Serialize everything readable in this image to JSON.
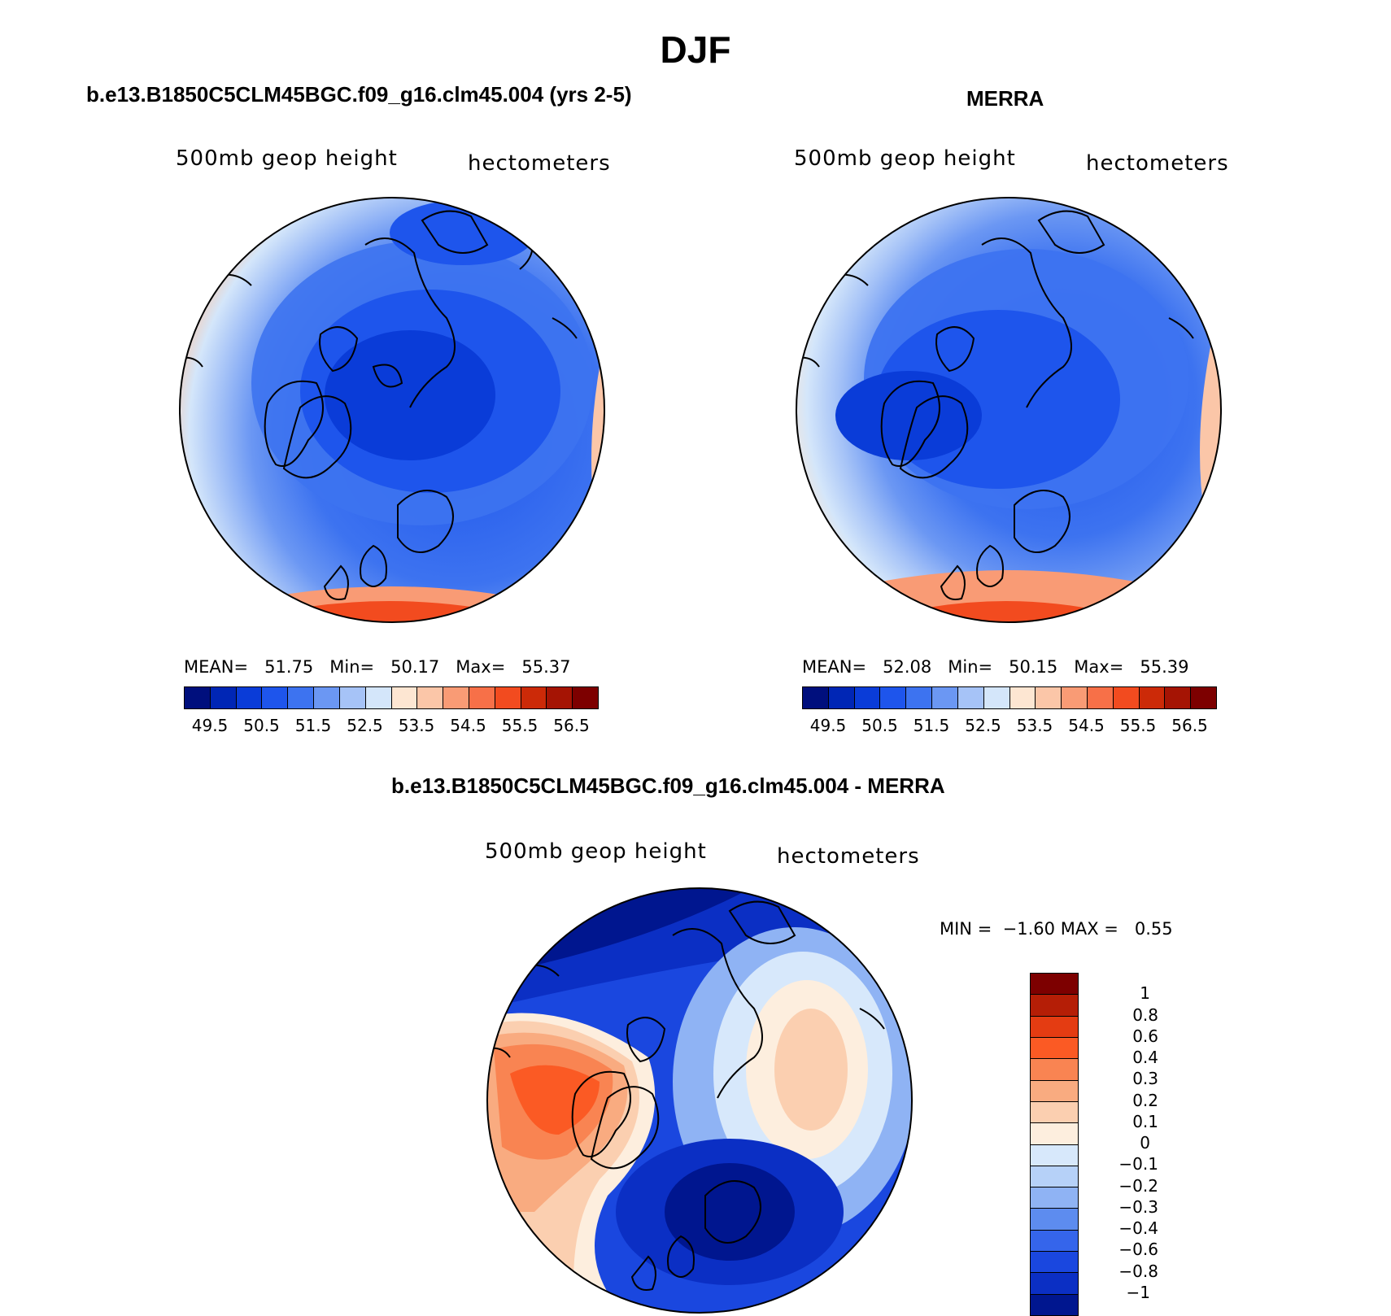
{
  "figure_title": "DJF",
  "panels": [
    {
      "title": "b.e13.B1850C5CLM45BGC.f09_g16.clm45.004 (yrs 2-5)",
      "left_label": "500mb geop height",
      "right_label": "hectometers",
      "mean_label": "MEAN=",
      "mean": "51.75",
      "min_label": "Min=",
      "min": "50.17",
      "max_label": "Max=",
      "max": "55.37"
    },
    {
      "title": "MERRA",
      "left_label": "500mb geop height",
      "right_label": "hectometers",
      "mean_label": "MEAN=",
      "mean": "52.08",
      "min_label": "Min=",
      "min": "50.15",
      "max_label": "Max=",
      "max": "55.39"
    },
    {
      "title": "b.e13.B1850C5CLM45BGC.f09_g16.clm45.004 - MERRA",
      "left_label": "500mb geop height",
      "right_label": "hectometers",
      "min_label": "MIN =",
      "min": "−1.60",
      "max_label": "MAX =",
      "max": "0.55"
    }
  ],
  "colorbar_abs": {
    "colors": [
      "#000f7d",
      "#0026b5",
      "#0a3cd8",
      "#1e55ec",
      "#3d73f0",
      "#6b97f3",
      "#a6c3f7",
      "#d4e6fa",
      "#fde6d2",
      "#fbc6a8",
      "#f99b75",
      "#f77048",
      "#f24b1f",
      "#cc2a08",
      "#a51404",
      "#7d0000"
    ],
    "tick_labels": [
      "49.5",
      "50.5",
      "51.5",
      "52.5",
      "53.5",
      "54.5",
      "55.5",
      "56.5"
    ]
  },
  "colorbar_diff": {
    "colors_top_to_bottom": [
      "#7d0000",
      "#b51e06",
      "#e43c12",
      "#fb5a24",
      "#f98452",
      "#f9ab80",
      "#fbcfb0",
      "#fdeede",
      "#d7e8fb",
      "#b6d1f8",
      "#8fb3f4",
      "#5d8cef",
      "#3565eb",
      "#1a47df",
      "#0b2fc4",
      "#00168f"
    ],
    "tick_labels_top_to_bottom": [
      "1",
      "0.8",
      "0.6",
      "0.4",
      "0.3",
      "0.2",
      "0.1",
      "0",
      "−0.1",
      "−0.2",
      "−0.3",
      "−0.4",
      "−0.6",
      "−0.8",
      "−1"
    ]
  },
  "maps": [
    {
      "field": "model",
      "projection": "north-polar-stereographic"
    },
    {
      "field": "merra",
      "projection": "north-polar-stereographic"
    },
    {
      "field": "difference",
      "projection": "north-polar-stereographic"
    }
  ]
}
